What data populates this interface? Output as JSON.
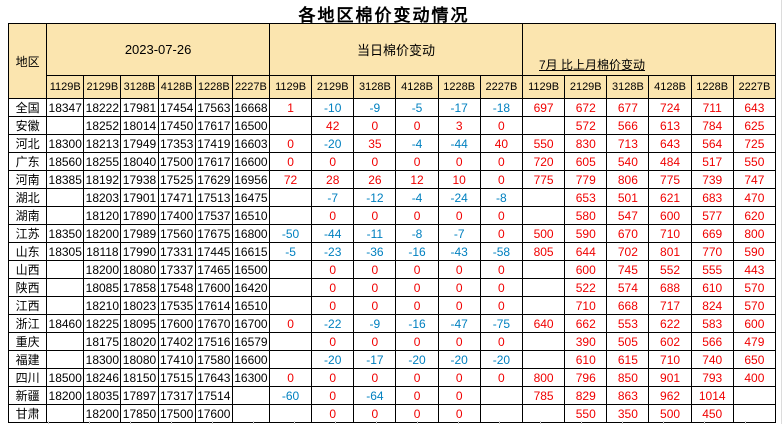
{
  "title": "各地区棉价变动情况",
  "header": {
    "region_label": "地区",
    "group1_label": "2023-07-26",
    "group2_label": "当日棉价变动",
    "group3_label": "7月 比上月棉价变动",
    "columns": [
      "1129B",
      "2129B",
      "3128B",
      "4128B",
      "1228B",
      "2227B"
    ]
  },
  "colors": {
    "header_bg": "#FBE5AF",
    "border": "#000000",
    "positive": "#F00000",
    "negative": "#0080C0",
    "price_text": "#000000"
  },
  "rows": [
    {
      "region": "全国",
      "prices": [
        "18347",
        "18222",
        "17981",
        "17454",
        "17563",
        "16668"
      ],
      "daily": [
        "1",
        "-10",
        "-9",
        "-5",
        "-17",
        "-18"
      ],
      "monthly": [
        "697",
        "672",
        "677",
        "724",
        "711",
        "643"
      ]
    },
    {
      "region": "安徽",
      "prices": [
        "",
        "18252",
        "18014",
        "17450",
        "17617",
        "16500"
      ],
      "daily": [
        "",
        "42",
        "0",
        "0",
        "3",
        "0"
      ],
      "monthly": [
        "",
        "572",
        "566",
        "613",
        "784",
        "625"
      ]
    },
    {
      "region": "河北",
      "prices": [
        "18300",
        "18213",
        "17949",
        "17353",
        "17419",
        "16603"
      ],
      "daily": [
        "0",
        "-20",
        "35",
        "-4",
        "-44",
        "40"
      ],
      "monthly": [
        "550",
        "830",
        "713",
        "643",
        "564",
        "725"
      ]
    },
    {
      "region": "广东",
      "prices": [
        "18560",
        "18255",
        "18040",
        "17500",
        "17617",
        "16600"
      ],
      "daily": [
        "0",
        "0",
        "0",
        "0",
        "0",
        "0"
      ],
      "monthly": [
        "720",
        "605",
        "540",
        "484",
        "517",
        "550"
      ]
    },
    {
      "region": "河南",
      "prices": [
        "18385",
        "18192",
        "17938",
        "17525",
        "17629",
        "16956"
      ],
      "daily": [
        "72",
        "28",
        "26",
        "12",
        "10",
        "0"
      ],
      "monthly": [
        "775",
        "779",
        "806",
        "775",
        "739",
        "747"
      ]
    },
    {
      "region": "湖北",
      "prices": [
        "",
        "18203",
        "17901",
        "17471",
        "17513",
        "16475"
      ],
      "daily": [
        "",
        "-7",
        "-12",
        "-4",
        "-24",
        "-8"
      ],
      "monthly": [
        "",
        "653",
        "501",
        "621",
        "683",
        "470"
      ]
    },
    {
      "region": "湖南",
      "prices": [
        "",
        "18120",
        "17890",
        "17400",
        "17537",
        "16510"
      ],
      "daily": [
        "",
        "0",
        "0",
        "0",
        "0",
        "0"
      ],
      "monthly": [
        "",
        "580",
        "547",
        "600",
        "577",
        "620"
      ]
    },
    {
      "region": "江苏",
      "prices": [
        "18350",
        "18200",
        "17989",
        "17560",
        "17675",
        "16800"
      ],
      "daily": [
        "-50",
        "-44",
        "-11",
        "-8",
        "-7",
        "0"
      ],
      "monthly": [
        "500",
        "590",
        "670",
        "710",
        "669",
        "800"
      ]
    },
    {
      "region": "山东",
      "prices": [
        "18305",
        "18118",
        "17990",
        "17331",
        "17445",
        "16615"
      ],
      "daily": [
        "-5",
        "-23",
        "-36",
        "-16",
        "-43",
        "-58"
      ],
      "monthly": [
        "805",
        "644",
        "702",
        "801",
        "770",
        "590"
      ]
    },
    {
      "region": "山西",
      "prices": [
        "",
        "18200",
        "18080",
        "17337",
        "17465",
        "16500"
      ],
      "daily": [
        "",
        "0",
        "0",
        "0",
        "0",
        "0"
      ],
      "monthly": [
        "",
        "600",
        "745",
        "552",
        "555",
        "443"
      ]
    },
    {
      "region": "陕西",
      "prices": [
        "",
        "18085",
        "17858",
        "17548",
        "17600",
        "16420"
      ],
      "daily": [
        "",
        "0",
        "0",
        "0",
        "0",
        "0"
      ],
      "monthly": [
        "",
        "522",
        "574",
        "688",
        "610",
        "570"
      ]
    },
    {
      "region": "江西",
      "prices": [
        "",
        "18210",
        "18023",
        "17535",
        "17614",
        "16510"
      ],
      "daily": [
        "",
        "0",
        "0",
        "0",
        "0",
        "0"
      ],
      "monthly": [
        "",
        "710",
        "668",
        "717",
        "824",
        "570"
      ]
    },
    {
      "region": "浙江",
      "prices": [
        "18460",
        "18225",
        "18095",
        "17600",
        "17670",
        "16700"
      ],
      "daily": [
        "0",
        "-22",
        "-9",
        "-16",
        "-47",
        "-75"
      ],
      "monthly": [
        "640",
        "662",
        "553",
        "622",
        "583",
        "600"
      ]
    },
    {
      "region": "重庆",
      "prices": [
        "",
        "18175",
        "18020",
        "17402",
        "17516",
        "16579"
      ],
      "daily": [
        "",
        "0",
        "0",
        "0",
        "0",
        "0"
      ],
      "monthly": [
        "",
        "390",
        "505",
        "602",
        "566",
        "479"
      ]
    },
    {
      "region": "福建",
      "prices": [
        "",
        "18300",
        "18080",
        "17410",
        "17580",
        "16600"
      ],
      "daily": [
        "",
        "-20",
        "-17",
        "-20",
        "-20",
        "-20"
      ],
      "monthly": [
        "",
        "610",
        "615",
        "710",
        "740",
        "650"
      ]
    },
    {
      "region": "四川",
      "prices": [
        "18500",
        "18246",
        "18150",
        "17515",
        "17643",
        "16300"
      ],
      "daily": [
        "0",
        "0",
        "0",
        "0",
        "0",
        "0"
      ],
      "monthly": [
        "800",
        "796",
        "850",
        "901",
        "793",
        "400"
      ]
    },
    {
      "region": "新疆",
      "prices": [
        "18200",
        "18035",
        "17897",
        "17317",
        "17514",
        ""
      ],
      "daily": [
        "-60",
        "0",
        "-64",
        "0",
        "0",
        ""
      ],
      "monthly": [
        "785",
        "829",
        "863",
        "962",
        "1014",
        ""
      ]
    },
    {
      "region": "甘肃",
      "prices": [
        "",
        "18200",
        "17850",
        "17500",
        "17600",
        ""
      ],
      "daily": [
        "",
        "0",
        "0",
        "0",
        "0",
        ""
      ],
      "monthly": [
        "",
        "550",
        "350",
        "500",
        "450",
        ""
      ]
    }
  ]
}
